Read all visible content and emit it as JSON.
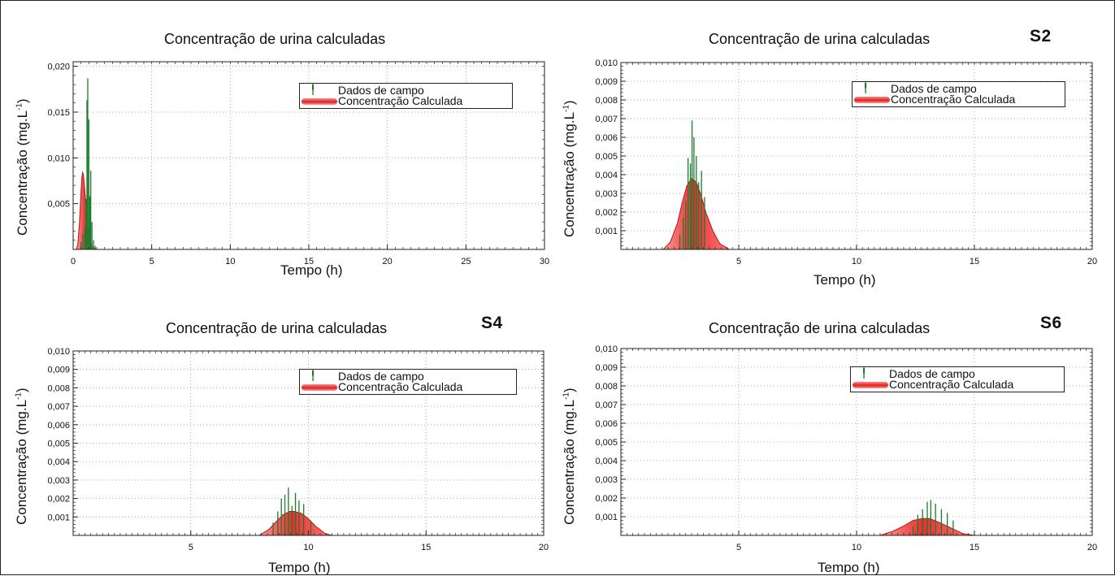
{
  "panels": [
    {
      "title": "Concentração de urina calculadas",
      "label": "",
      "xlabel": "Tempo (h)",
      "ylabel": "Concentração (mg.L",
      "ylabel_sup": "-1",
      "ylabel_close": ")",
      "legend": {
        "data": "Dados de campo",
        "calc": "Concentração Calculada"
      }
    },
    {
      "title": "Concentração de urina calculadas",
      "label": "S2",
      "xlabel": "Tempo (h)",
      "ylabel": "Concentração (mg.L",
      "ylabel_sup": "-1",
      "ylabel_close": ")",
      "legend": {
        "data": "Dados de campo",
        "calc": "Concentração Calculada"
      }
    },
    {
      "title": "Concentração de urina calculadas",
      "label": "S4",
      "xlabel": "Tempo (h)",
      "ylabel": "Concentração (mg.L",
      "ylabel_sup": "-1",
      "ylabel_close": ")",
      "legend": {
        "data": "Dados de campo",
        "calc": "Concentração Calculada"
      }
    },
    {
      "title": "Concentração de urina calculadas",
      "label": "S6",
      "xlabel": "Tempo (h)",
      "ylabel": "Concentração (mg.L",
      "ylabel_sup": "-1",
      "ylabel_close": ")",
      "legend": {
        "data": "Dados de campo",
        "calc": "Concentração Calculada"
      }
    }
  ],
  "colors": {
    "data_bars": "#1e7a2e",
    "calc_fill": "#e83030",
    "calc_line": "#b01818",
    "grid": "#9a9a9a",
    "axis": "#222222"
  },
  "chart_data": [
    {
      "type": "line",
      "title": "Concentração de urina calculadas",
      "xlabel": "Tempo (h)",
      "ylabel": "Concentração (mg.L-1)",
      "xlim": [
        0,
        30
      ],
      "ylim": [
        0,
        0.0205
      ],
      "xticks": [
        0,
        5,
        10,
        15,
        20,
        25,
        30
      ],
      "xtick_labels": [
        "0",
        "5",
        "10",
        "15",
        "20",
        "25",
        "30"
      ],
      "yticks": [
        0.005,
        0.01,
        0.015,
        0.02
      ],
      "ytick_labels": [
        "0,005",
        "0,010",
        "0,015",
        "0,020"
      ],
      "grid": true,
      "legend_position": "top-right",
      "series": [
        {
          "name": "Dados de campo",
          "kind": "stems",
          "x": [
            0.5,
            0.62,
            0.75,
            0.82,
            0.88,
            0.93,
            1.0,
            1.06,
            1.12,
            1.2,
            1.3,
            1.4
          ],
          "y": [
            0.0008,
            0.0017,
            0.0024,
            0.0055,
            0.0163,
            0.0187,
            0.0142,
            0.0058,
            0.0086,
            0.003,
            0.001,
            0.0004
          ]
        },
        {
          "name": "Concentração Calculada",
          "kind": "area",
          "x": [
            0.2,
            0.3,
            0.4,
            0.5,
            0.55,
            0.6,
            0.65,
            0.7,
            0.8,
            0.9,
            1.0,
            1.1,
            1.2,
            1.35,
            1.5
          ],
          "y": [
            0,
            0.0006,
            0.0028,
            0.0062,
            0.0078,
            0.0084,
            0.0082,
            0.0074,
            0.0052,
            0.003,
            0.0015,
            0.0007,
            0.0003,
            0.0001,
            0
          ]
        }
      ]
    },
    {
      "type": "line",
      "title": "Concentração de urina calculadas",
      "xlabel": "Tempo (h)",
      "ylabel": "Concentração (mg.L-1)",
      "xlim": [
        0,
        20
      ],
      "ylim": [
        0,
        0.01
      ],
      "xticks": [
        5,
        10,
        15,
        20
      ],
      "xtick_labels": [
        "5",
        "10",
        "15",
        "20"
      ],
      "yticks": [
        0.001,
        0.002,
        0.003,
        0.004,
        0.005,
        0.006,
        0.007,
        0.008,
        0.009,
        0.01
      ],
      "ytick_labels": [
        "0,001",
        "0,002",
        "0,003",
        "0,004",
        "0,005",
        "0,006",
        "0,007",
        "0,008",
        "0,009",
        "0,010"
      ],
      "grid": true,
      "legend_position": "top-right",
      "series": [
        {
          "name": "Dados de campo",
          "kind": "stems",
          "x": [
            2.5,
            2.65,
            2.75,
            2.85,
            2.95,
            3.02,
            3.1,
            3.2,
            3.3,
            3.42,
            3.55
          ],
          "y": [
            0.0008,
            0.0017,
            0.0026,
            0.0049,
            0.0046,
            0.0069,
            0.006,
            0.005,
            0.0036,
            0.0042,
            0.0028
          ]
        },
        {
          "name": "Concentração Calculada",
          "kind": "area",
          "x": [
            1.8,
            2.1,
            2.4,
            2.6,
            2.8,
            3.0,
            3.2,
            3.4,
            3.6,
            3.9,
            4.2,
            4.6
          ],
          "y": [
            0,
            0.0004,
            0.0014,
            0.0025,
            0.0034,
            0.0038,
            0.0036,
            0.0029,
            0.002,
            0.001,
            0.0003,
            0
          ]
        }
      ]
    },
    {
      "type": "line",
      "title": "Concentração de urina calculadas",
      "xlabel": "Tempo (h)",
      "ylabel": "Concentração (mg.L-1)",
      "xlim": [
        0,
        20
      ],
      "ylim": [
        0,
        0.01
      ],
      "xticks": [
        5,
        10,
        15,
        20
      ],
      "xtick_labels": [
        "5",
        "10",
        "15",
        "20"
      ],
      "yticks": [
        0.001,
        0.002,
        0.003,
        0.004,
        0.005,
        0.006,
        0.007,
        0.008,
        0.009,
        0.01
      ],
      "ytick_labels": [
        "0,001",
        "0,002",
        "0,003",
        "0,004",
        "0,005",
        "0,006",
        "0,007",
        "0,008",
        "0,009",
        "0,010"
      ],
      "grid": true,
      "legend_position": "top-right",
      "series": [
        {
          "name": "Dados de campo",
          "kind": "stems",
          "x": [
            8.5,
            8.7,
            8.85,
            9.0,
            9.15,
            9.3,
            9.45,
            9.6,
            9.8,
            10.1
          ],
          "y": [
            0.0007,
            0.0013,
            0.002,
            0.0022,
            0.0026,
            0.0016,
            0.0023,
            0.0019,
            0.0017,
            0.0008
          ]
        },
        {
          "name": "Concentração Calculada",
          "kind": "area",
          "x": [
            7.9,
            8.3,
            8.6,
            8.9,
            9.2,
            9.4,
            9.7,
            10.0,
            10.3,
            10.7,
            11.0
          ],
          "y": [
            0,
            0.0003,
            0.0007,
            0.0011,
            0.0013,
            0.0013,
            0.0012,
            0.0009,
            0.0005,
            0.0001,
            0
          ]
        }
      ]
    },
    {
      "type": "line",
      "title": "Concentração de urina calculadas",
      "xlabel": "Tempo (h)",
      "ylabel": "Concentração (mg.L-1)",
      "xlim": [
        0,
        20
      ],
      "ylim": [
        0,
        0.01
      ],
      "xticks": [
        5,
        10,
        15,
        20
      ],
      "xtick_labels": [
        "5",
        "10",
        "15",
        "20"
      ],
      "yticks": [
        0.001,
        0.002,
        0.003,
        0.004,
        0.005,
        0.006,
        0.007,
        0.008,
        0.009,
        0.01
      ],
      "ytick_labels": [
        "0,001",
        "0,002",
        "0,003",
        "0,004",
        "0,005",
        "0,006",
        "0,007",
        "0,008",
        "0,009",
        "0,010"
      ],
      "grid": true,
      "legend_position": "top-right",
      "series": [
        {
          "name": "Dados de campo",
          "kind": "stems",
          "x": [
            12.4,
            12.6,
            12.8,
            13.0,
            13.15,
            13.35,
            13.6,
            13.85,
            14.1
          ],
          "y": [
            0.0005,
            0.0011,
            0.0014,
            0.0018,
            0.0019,
            0.0017,
            0.0014,
            0.0012,
            0.0008
          ]
        },
        {
          "name": "Concentração Calculada",
          "kind": "area",
          "x": [
            11.0,
            11.5,
            12.0,
            12.4,
            12.8,
            13.1,
            13.5,
            14.0,
            14.5,
            15.0
          ],
          "y": [
            0,
            0.0002,
            0.0005,
            0.0008,
            0.0009,
            0.0009,
            0.0007,
            0.0004,
            0.0001,
            0
          ]
        }
      ]
    }
  ]
}
